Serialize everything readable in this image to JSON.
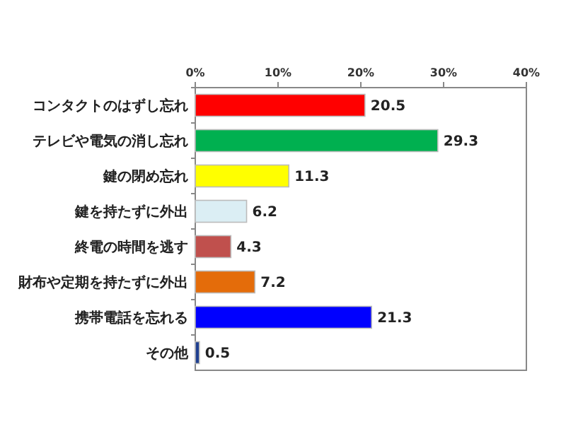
{
  "chart_data": {
    "type": "bar",
    "orientation": "horizontal",
    "categories": [
      "コンタクトのはずし忘れ",
      "テレビや電気の消し忘れ",
      "鍵の閉め忘れ",
      "鍵を持たずに外出",
      "終電の時間を逃す",
      "財布や定期を持たずに外出",
      "携帯電話を忘れる",
      "その他"
    ],
    "values": [
      20.5,
      29.3,
      11.3,
      6.2,
      4.3,
      7.2,
      21.3,
      0.5
    ],
    "colors": [
      "#ff0000",
      "#00b050",
      "#ffff00",
      "#dbeef4",
      "#c0504d",
      "#e46c0a",
      "#0000ff",
      "#1f3f8f"
    ],
    "data_labels": true,
    "xlim": [
      0,
      40
    ],
    "xticks": [
      {
        "value": 0,
        "label": "0%"
      },
      {
        "value": 10,
        "label": "10%"
      },
      {
        "value": 20,
        "label": "20%"
      },
      {
        "value": 30,
        "label": "30%"
      },
      {
        "value": 40,
        "label": "40%"
      }
    ],
    "grid": false
  }
}
